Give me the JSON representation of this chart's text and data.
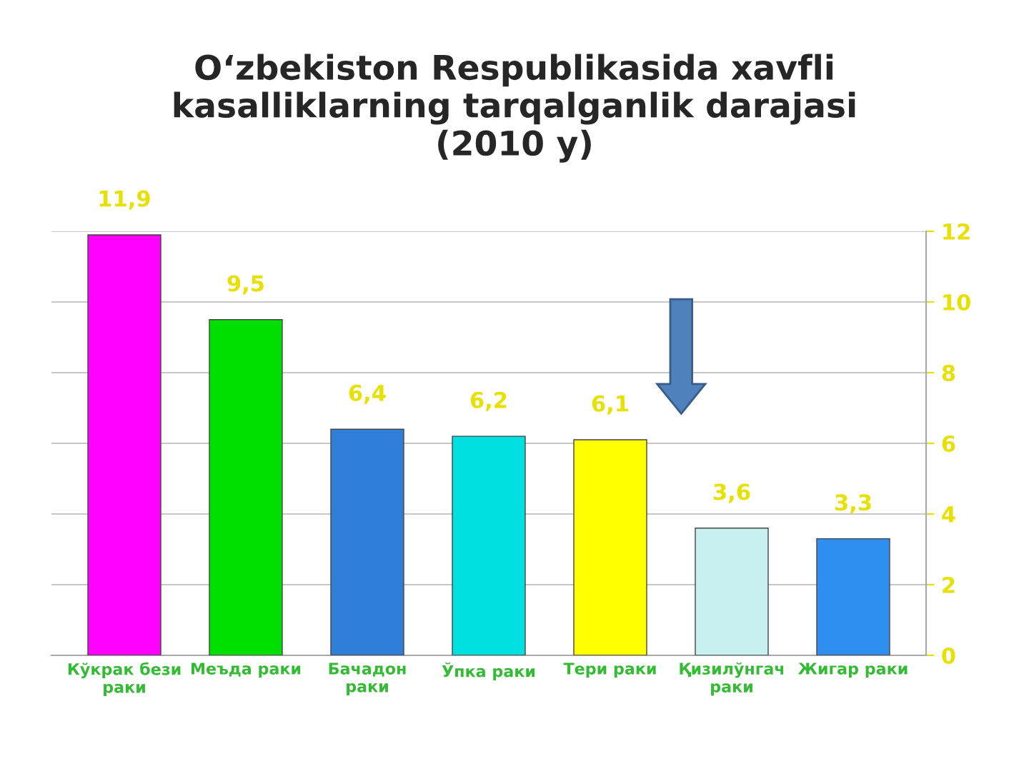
{
  "chart_data": {
    "type": "bar",
    "title": "O‘zbekiston Respublikasida xavfli\nkasalliklarning tarqalganlik darajasi\n(2010 y)",
    "categories": [
      "Кўкрак бези\nраки",
      "Меъда раки",
      "Бачадон\nраки",
      "Ўпка раки",
      "Тери раки",
      "Қизилўнгач\nраки",
      "Жигар раки"
    ],
    "values": [
      11.9,
      9.5,
      6.4,
      6.2,
      6.1,
      3.6,
      3.3
    ],
    "value_labels": [
      "11,9",
      "9,5",
      "6,4",
      "6,2",
      "6,1",
      "3,6",
      "3,3"
    ],
    "colors": [
      "#ff00ff",
      "#00e000",
      "#2f7fd8",
      "#00e0e0",
      "#ffff00",
      "#c8f0f0",
      "#2f8ff0"
    ],
    "ylim": [
      0,
      12
    ],
    "yticks": [
      0,
      2,
      4,
      6,
      8,
      10,
      12
    ],
    "grid": "y"
  }
}
